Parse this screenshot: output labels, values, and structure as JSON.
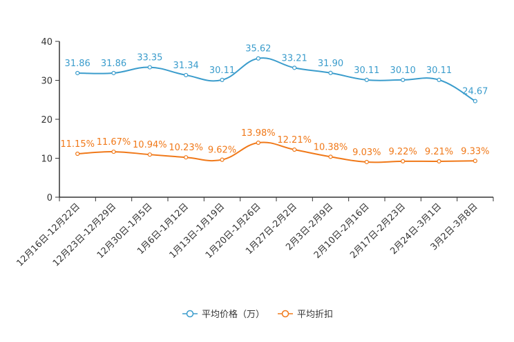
{
  "colors": {
    "series1": "#3a9ccc",
    "series2": "#f07818",
    "axis": "#333333",
    "background": "#ffffff"
  },
  "chart_data": {
    "type": "line",
    "title": "",
    "xlabel": "",
    "ylabel": "",
    "ylim": [
      0,
      40
    ],
    "yticks": [
      "0",
      "10",
      "20",
      "30",
      "40"
    ],
    "grid": false,
    "legend_position": "bottom",
    "categories": [
      "12月16日-12月22日",
      "12月23日-12月29日",
      "12月30日-1月5日",
      "1月6日-1月12日",
      "1月13日-1月19日",
      "1月20日-1月26日",
      "1月27日-2月2日",
      "2月3日-2月9日",
      "2月10日-2月16日",
      "2月17日-2月23日",
      "2月24日-3月1日",
      "3月2日-3月8日"
    ],
    "series": [
      {
        "name": "平均价格（万）",
        "color": "#3a9ccc",
        "values": [
          31.86,
          31.86,
          33.35,
          31.34,
          30.11,
          35.62,
          33.21,
          31.9,
          30.11,
          30.1,
          30.11,
          24.67
        ],
        "labels": [
          "31.86",
          "31.86",
          "33.35",
          "31.34",
          "30.11",
          "35.62",
          "33.21",
          "31.90",
          "30.11",
          "30.10",
          "30.11",
          "24.67"
        ]
      },
      {
        "name": "平均折扣",
        "color": "#f07818",
        "values": [
          11.15,
          11.67,
          10.94,
          10.23,
          9.62,
          13.98,
          12.21,
          10.38,
          9.03,
          9.22,
          9.21,
          9.33
        ],
        "labels": [
          "11.15%",
          "11.67%",
          "10.94%",
          "10.23%",
          "9.62%",
          "13.98%",
          "12.21%",
          "10.38%",
          "9.03%",
          "9.22%",
          "9.21%",
          "9.33%"
        ]
      }
    ]
  }
}
